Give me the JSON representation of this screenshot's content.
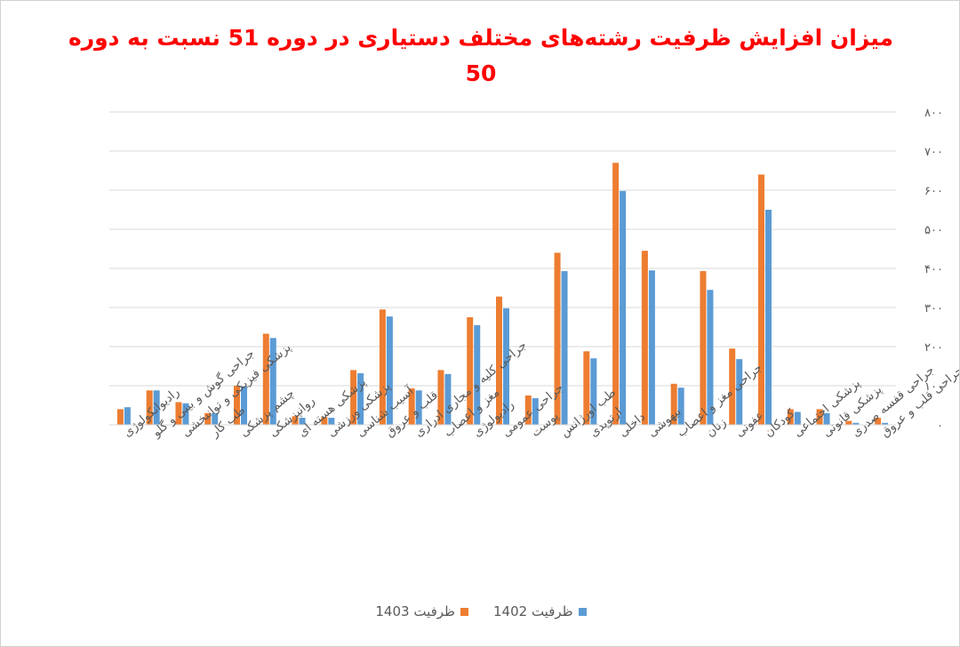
{
  "chart_data": {
    "type": "bar",
    "title": "میزان افزایش ظرفیت رشته‌های مختلف دستیاری در دوره 51 نسبت به دوره 50",
    "xlabel": "",
    "ylabel": "",
    "ylim": [
      0,
      800
    ],
    "yticks": [
      0,
      100,
      200,
      300,
      400,
      500,
      600,
      700,
      800
    ],
    "ytick_labels": [
      "۰",
      "۱۰۰",
      "۲۰۰",
      "۳۰۰",
      "۴۰۰",
      "۵۰۰",
      "۶۰۰",
      "۷۰۰",
      "۸۰۰"
    ],
    "grid": true,
    "legend_position": "bottom",
    "categories": [
      "رادیوانکولوژی",
      "جراحی گوش و بینی و گلو",
      "پزشکی فیزیکی و توانبخشی",
      "طب کار",
      "چشم پزشکی",
      "روانپزشکی",
      "پزشکی هسته ای",
      "پزشکی ورزشی",
      "آسیب شناسی",
      "قلب و عروق",
      "جراحی کلیه و مجاری ادراری",
      "مغز و اعصاب",
      "رادیولوژی",
      "جراحی عمومی",
      "پوست",
      "طب اورژانس",
      "ارتوپدی",
      "داخلی",
      "بیهوشی",
      "جراحی مغز و اعصاب",
      "زنان",
      "عفونی",
      "کودکان",
      "پزشکی اجتماعی",
      "پزشکی قانونی",
      "جراحی قفسه صدری",
      "جراحی قلب و عروق"
    ],
    "series": [
      {
        "name": "ظرفیت 1403",
        "color": "#ED7D31",
        "values": [
          40,
          88,
          58,
          30,
          100,
          233,
          22,
          20,
          140,
          295,
          93,
          140,
          275,
          328,
          75,
          440,
          188,
          670,
          445,
          105,
          393,
          195,
          640,
          40,
          40,
          10,
          18
        ]
      },
      {
        "name": "ظرفیت 1402",
        "color": "#5B9BD5",
        "values": [
          45,
          88,
          55,
          30,
          98,
          222,
          18,
          18,
          132,
          277,
          88,
          130,
          255,
          298,
          68,
          393,
          170,
          598,
          395,
          95,
          345,
          168,
          550,
          33,
          30,
          5,
          5
        ]
      }
    ]
  }
}
